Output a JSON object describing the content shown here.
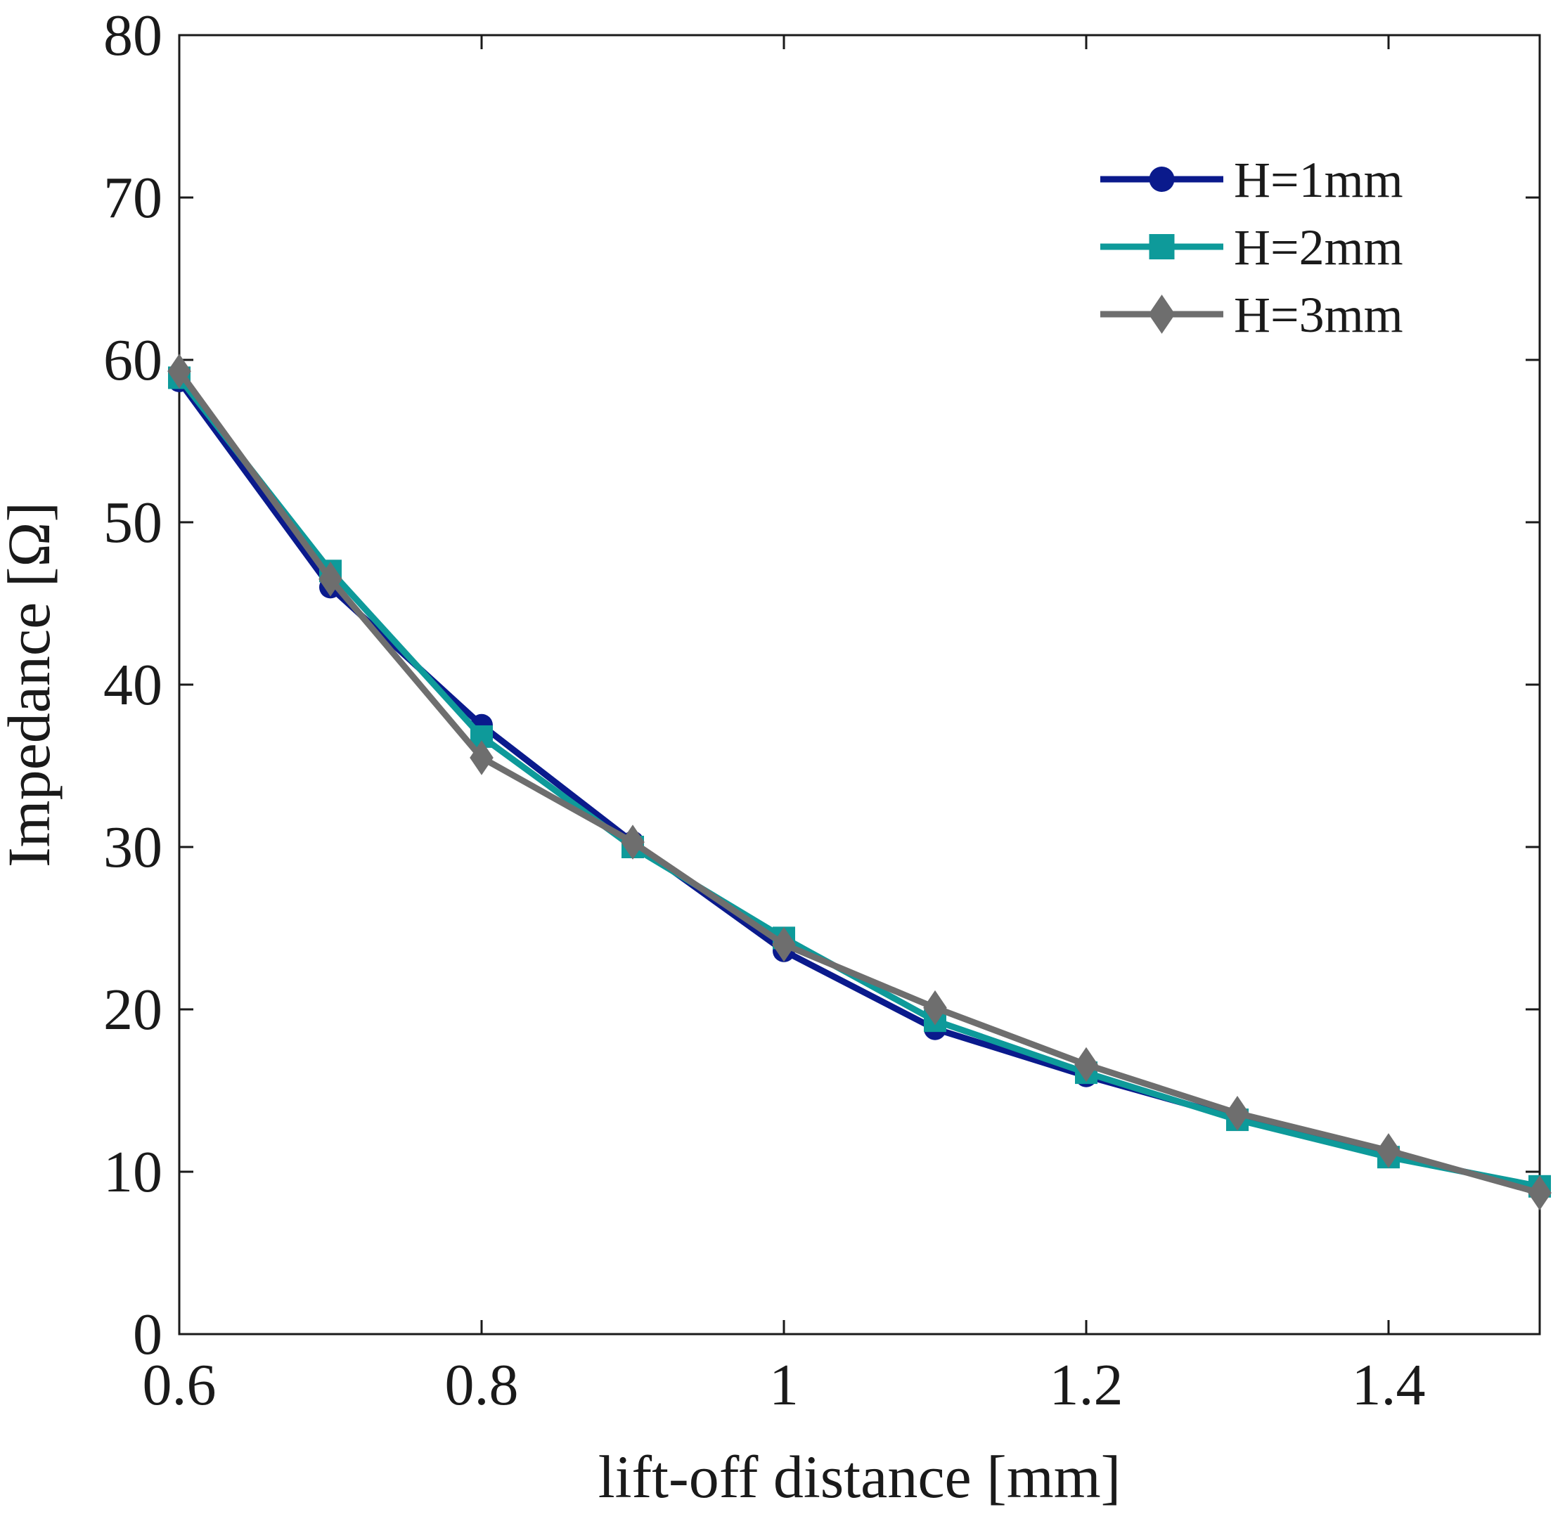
{
  "chart_data": {
    "type": "line",
    "title": "",
    "xlabel": "lift-off distance [mm]",
    "ylabel": "Impedance [Ω]",
    "xlim": [
      0.6,
      1.5
    ],
    "ylim": [
      0,
      80
    ],
    "xticks": [
      0.6,
      0.8,
      1.0,
      1.2,
      1.4
    ],
    "xtick_labels": [
      "0.6",
      "0.8",
      "1",
      "1.2",
      "1.4"
    ],
    "yticks": [
      0,
      10,
      20,
      30,
      40,
      50,
      60,
      70,
      80
    ],
    "ytick_labels": [
      "0",
      "10",
      "20",
      "30",
      "40",
      "50",
      "60",
      "70",
      "80"
    ],
    "grid": false,
    "legend_position": "top-right",
    "x": [
      0.6,
      0.7,
      0.8,
      0.9,
      1.0,
      1.1,
      1.2,
      1.3,
      1.4,
      1.5
    ],
    "series": [
      {
        "name": "H=1mm",
        "color": "#0a1a8c",
        "marker": "circle",
        "values": [
          58.7,
          46.0,
          37.5,
          30.3,
          23.6,
          18.8,
          15.9,
          13.3,
          11.0,
          9.0
        ]
      },
      {
        "name": "H=2mm",
        "color": "#0e9a9a",
        "marker": "square",
        "values": [
          58.9,
          47.0,
          36.8,
          30.0,
          24.4,
          19.3,
          16.1,
          13.2,
          10.9,
          9.1
        ]
      },
      {
        "name": "H=3mm",
        "color": "#6e6e6e",
        "marker": "diamond",
        "values": [
          59.3,
          46.5,
          35.5,
          30.3,
          24.0,
          20.1,
          16.6,
          13.6,
          11.3,
          8.7
        ]
      }
    ]
  }
}
